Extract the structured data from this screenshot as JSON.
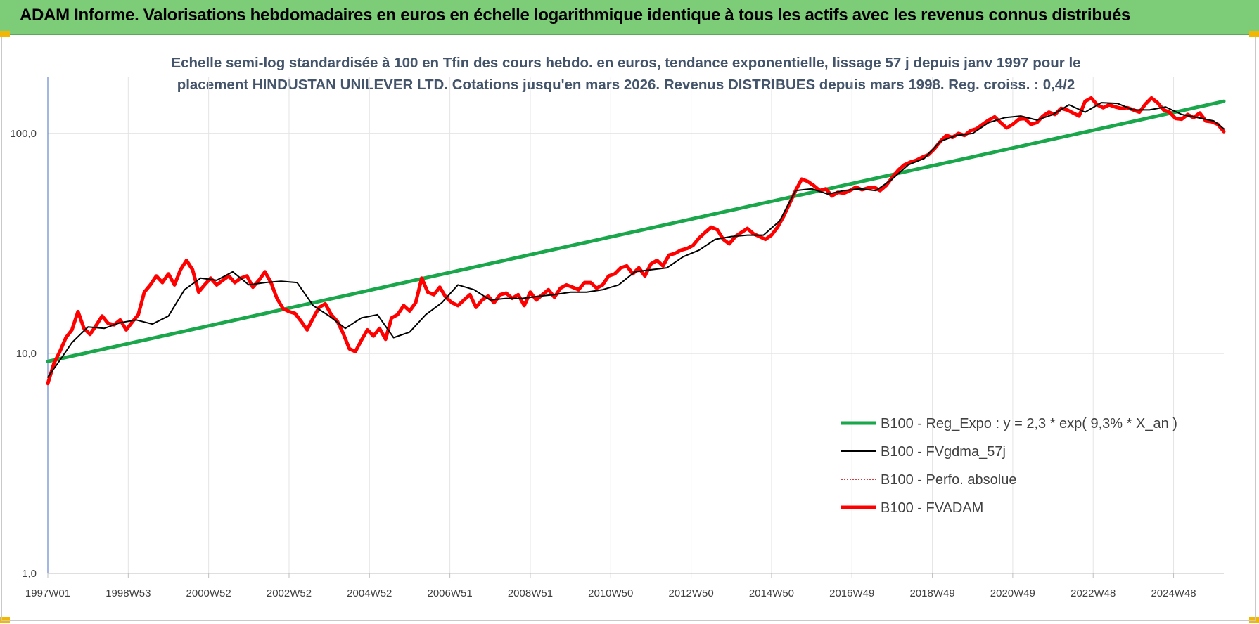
{
  "banner": {
    "title": "ADAM Informe. Valorisations hebdomadaires en euros en échelle logarithmique identique à tous les actifs avec les revenus connus distribués",
    "bg_color": "#7dcc78"
  },
  "chart_data": {
    "type": "line",
    "title_lines": [
      "Echelle semi-log standardisée à 100 en Tfin des cours hebdo. en euros, tendance exponentielle, lissage 57 j depuis janv 1997 pour le",
      "placement HINDUSTAN UNILEVER LTD. Cotations jusqu'en mars 2026. Revenus DISTRIBUES depuis mars 1998. Reg. croiss. : 0,4/2"
    ],
    "yscale": "log",
    "ylim": [
      1,
      180
    ],
    "xlim": [
      1997.0,
      2026.25
    ],
    "y_ticks": [
      {
        "value": 1,
        "label": "1,0"
      },
      {
        "value": 10,
        "label": "10,0"
      },
      {
        "value": 100,
        "label": "100,0"
      }
    ],
    "x_ticks": [
      {
        "value": 1997.0,
        "label": "1997W01"
      },
      {
        "value": 1999.0,
        "label": "1998W53"
      },
      {
        "value": 2001.0,
        "label": "2000W52"
      },
      {
        "value": 2003.0,
        "label": "2002W52"
      },
      {
        "value": 2005.0,
        "label": "2004W52"
      },
      {
        "value": 2007.0,
        "label": "2006W51"
      },
      {
        "value": 2009.0,
        "label": "2008W51"
      },
      {
        "value": 2011.0,
        "label": "2010W50"
      },
      {
        "value": 2013.0,
        "label": "2012W50"
      },
      {
        "value": 2015.0,
        "label": "2014W50"
      },
      {
        "value": 2017.0,
        "label": "2016W49"
      },
      {
        "value": 2019.0,
        "label": "2018W49"
      },
      {
        "value": 2021.0,
        "label": "2020W49"
      },
      {
        "value": 2023.0,
        "label": "2022W48"
      },
      {
        "value": 2025.0,
        "label": "2024W48"
      }
    ],
    "grid": "horizontal-and-vertical",
    "legend_position": "bottom-right",
    "series": [
      {
        "name": "B100 - Reg_Expo : y = 2,3 * exp( 9,3% *  X_an )",
        "color": "#1aa64a",
        "style": "thick",
        "x": [
          1997.0,
          2026.25
        ],
        "y": [
          9.2,
          140
        ]
      },
      {
        "name": "B100 - FVgdma_57j",
        "color": "#000000",
        "style": "thin",
        "x": [
          1997.0,
          1997.3,
          1997.6,
          1998.0,
          1998.4,
          1998.8,
          1999.2,
          1999.6,
          2000.0,
          2000.4,
          2000.8,
          2001.2,
          2001.6,
          2002.0,
          2002.4,
          2002.8,
          2003.2,
          2003.6,
          2004.0,
          2004.4,
          2004.8,
          2005.2,
          2005.6,
          2006.0,
          2006.4,
          2006.8,
          2007.2,
          2007.6,
          2008.0,
          2008.4,
          2008.8,
          2009.2,
          2009.6,
          2010.0,
          2010.4,
          2010.8,
          2011.2,
          2011.6,
          2012.0,
          2012.4,
          2012.8,
          2013.2,
          2013.6,
          2014.0,
          2014.4,
          2014.8,
          2015.2,
          2015.6,
          2016.0,
          2016.4,
          2016.8,
          2017.2,
          2017.6,
          2018.0,
          2018.4,
          2018.8,
          2019.2,
          2019.6,
          2020.0,
          2020.4,
          2020.8,
          2021.2,
          2021.6,
          2022.0,
          2022.4,
          2022.8,
          2023.2,
          2023.6,
          2024.0,
          2024.4,
          2024.8,
          2025.2,
          2025.6,
          2026.0,
          2026.25
        ],
        "y": [
          7.8,
          9.3,
          11.2,
          13.2,
          13.0,
          13.8,
          14.2,
          13.6,
          14.8,
          19.5,
          22.0,
          21.5,
          23.5,
          20.5,
          21.0,
          21.3,
          21.0,
          16.5,
          14.8,
          13.0,
          14.5,
          15.0,
          11.8,
          12.5,
          15.0,
          17.0,
          20.5,
          19.5,
          17.5,
          17.8,
          17.8,
          18.2,
          18.5,
          19.0,
          19.0,
          19.5,
          20.5,
          23.5,
          24.0,
          24.5,
          27.5,
          29.5,
          33.0,
          34.0,
          34.5,
          34.5,
          40.0,
          55.0,
          56.0,
          53.0,
          55.0,
          56.0,
          55.0,
          62.0,
          72.0,
          77.0,
          92.0,
          98.0,
          100.0,
          112.0,
          118.0,
          120.0,
          115.0,
          122.0,
          135.0,
          125.0,
          138.0,
          137.0,
          128.0,
          128.0,
          132.0,
          122.0,
          118.0,
          114.0,
          105.0
        ]
      },
      {
        "name": "B100 - Perfo. absolue",
        "color": "#c00000",
        "style": "dotted",
        "x": [],
        "y": []
      },
      {
        "name": "B100 - FVADAM",
        "color": "#ff0000",
        "style": "thick",
        "x": [
          1997.0,
          1997.15,
          1997.3,
          1997.45,
          1997.6,
          1997.75,
          1997.9,
          1998.05,
          1998.2,
          1998.35,
          1998.5,
          1998.65,
          1998.8,
          1998.95,
          1999.1,
          1999.25,
          1999.4,
          1999.55,
          1999.7,
          1999.85,
          2000.0,
          2000.15,
          2000.3,
          2000.45,
          2000.6,
          2000.75,
          2000.9,
          2001.05,
          2001.2,
          2001.35,
          2001.5,
          2001.65,
          2001.8,
          2001.95,
          2002.1,
          2002.25,
          2002.4,
          2002.55,
          2002.7,
          2002.85,
          2003.0,
          2003.15,
          2003.3,
          2003.45,
          2003.6,
          2003.75,
          2003.9,
          2004.05,
          2004.2,
          2004.35,
          2004.5,
          2004.65,
          2004.8,
          2004.95,
          2005.1,
          2005.25,
          2005.4,
          2005.55,
          2005.7,
          2005.85,
          2006.0,
          2006.15,
          2006.3,
          2006.45,
          2006.6,
          2006.75,
          2006.9,
          2007.05,
          2007.2,
          2007.35,
          2007.5,
          2007.65,
          2007.8,
          2007.95,
          2008.1,
          2008.25,
          2008.4,
          2008.55,
          2008.7,
          2008.85,
          2009.0,
          2009.15,
          2009.3,
          2009.45,
          2009.6,
          2009.75,
          2009.9,
          2010.05,
          2010.2,
          2010.35,
          2010.5,
          2010.65,
          2010.8,
          2010.95,
          2011.1,
          2011.25,
          2011.4,
          2011.55,
          2011.7,
          2011.85,
          2012.0,
          2012.15,
          2012.3,
          2012.45,
          2012.6,
          2012.75,
          2012.9,
          2013.05,
          2013.2,
          2013.35,
          2013.5,
          2013.65,
          2013.8,
          2013.95,
          2014.1,
          2014.25,
          2014.4,
          2014.55,
          2014.7,
          2014.85,
          2015.0,
          2015.15,
          2015.3,
          2015.45,
          2015.6,
          2015.75,
          2015.9,
          2016.05,
          2016.2,
          2016.35,
          2016.5,
          2016.65,
          2016.8,
          2016.95,
          2017.1,
          2017.25,
          2017.4,
          2017.55,
          2017.7,
          2017.85,
          2018.0,
          2018.15,
          2018.3,
          2018.45,
          2018.6,
          2018.75,
          2018.9,
          2019.05,
          2019.2,
          2019.35,
          2019.5,
          2019.65,
          2019.8,
          2019.95,
          2020.1,
          2020.25,
          2020.4,
          2020.55,
          2020.7,
          2020.85,
          2021.0,
          2021.15,
          2021.3,
          2021.45,
          2021.6,
          2021.75,
          2021.9,
          2022.05,
          2022.2,
          2022.35,
          2022.5,
          2022.65,
          2022.8,
          2022.95,
          2023.1,
          2023.25,
          2023.4,
          2023.55,
          2023.7,
          2023.85,
          2024.0,
          2024.15,
          2024.3,
          2024.45,
          2024.6,
          2024.75,
          2024.9,
          2025.05,
          2025.2,
          2025.35,
          2025.5,
          2025.65,
          2025.8,
          2025.95,
          2026.1,
          2026.25
        ],
        "y": [
          7.3,
          9.0,
          10.2,
          11.8,
          12.8,
          15.5,
          13.0,
          12.2,
          13.4,
          14.8,
          13.7,
          13.5,
          14.2,
          12.8,
          13.9,
          15.0,
          19.0,
          20.5,
          22.5,
          21.0,
          23.0,
          20.5,
          24.0,
          26.5,
          24.0,
          19.0,
          20.5,
          22.0,
          20.5,
          21.5,
          22.5,
          21.0,
          22.0,
          22.5,
          20.0,
          21.5,
          23.5,
          21.0,
          17.8,
          16.0,
          15.5,
          15.2,
          14.0,
          12.8,
          14.5,
          16.2,
          16.8,
          15.0,
          14.0,
          12.3,
          10.5,
          10.2,
          11.5,
          12.8,
          12.0,
          13.0,
          11.6,
          14.5,
          15.0,
          16.5,
          15.6,
          17.0,
          22.0,
          19.0,
          18.5,
          20.0,
          18.0,
          17.0,
          16.5,
          17.5,
          18.5,
          16.2,
          17.5,
          18.2,
          17.0,
          18.5,
          18.8,
          17.8,
          18.5,
          16.5,
          19.0,
          17.5,
          18.5,
          19.5,
          18.0,
          19.8,
          20.5,
          20.0,
          19.5,
          21.0,
          21.0,
          19.8,
          20.5,
          22.5,
          23.0,
          24.5,
          25.0,
          23.0,
          24.5,
          22.5,
          25.5,
          26.5,
          25.0,
          28.0,
          28.5,
          29.5,
          30.0,
          31.0,
          33.5,
          35.5,
          37.5,
          36.5,
          33.0,
          31.5,
          34.0,
          35.5,
          37.0,
          35.0,
          34.0,
          33.0,
          34.5,
          37.5,
          42.0,
          48.0,
          55.0,
          62.0,
          60.5,
          58.0,
          55.0,
          56.0,
          52.0,
          54.0,
          53.5,
          55.0,
          57.0,
          55.5,
          56.5,
          57.0,
          55.0,
          58.0,
          63.0,
          68.0,
          72.0,
          74.0,
          75.5,
          78.0,
          80.0,
          85.0,
          92.0,
          98.0,
          96.0,
          100.0,
          98.0,
          103.0,
          105.0,
          110.0,
          115.0,
          119.0,
          112.0,
          106.0,
          110.0,
          116.0,
          117.0,
          110.0,
          112.0,
          120.0,
          125.0,
          122.0,
          130.0,
          128.0,
          124.0,
          120.0,
          140.0,
          145.0,
          135.0,
          131.0,
          135.0,
          132.0,
          130.0,
          131.0,
          128.0,
          125.0,
          136.0,
          145.0,
          138.0,
          128.0,
          125.0,
          117.0,
          116.0,
          122.0,
          118.0,
          124.0,
          114.0,
          113.0,
          110.0,
          102.0
        ]
      }
    ]
  }
}
